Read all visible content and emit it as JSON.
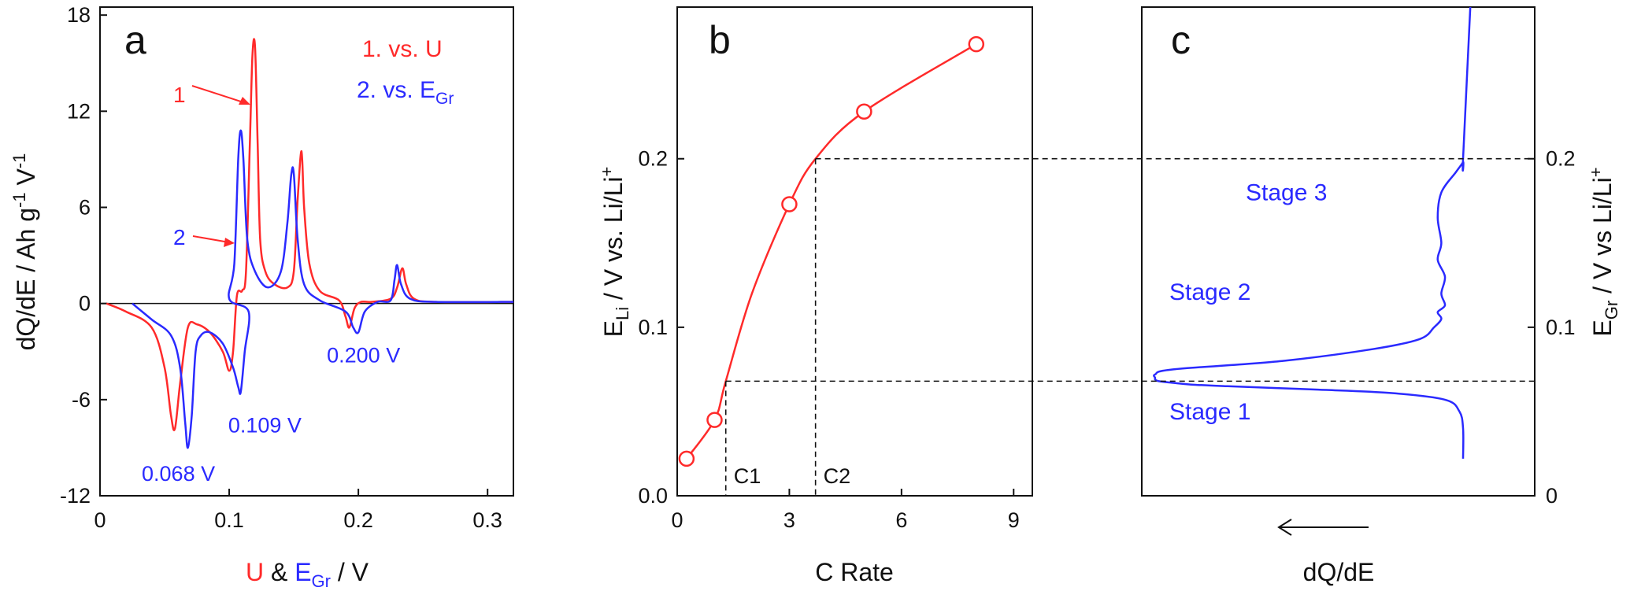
{
  "chart_data": [
    {
      "panel": "a",
      "type": "line",
      "xlabel_parts": [
        "U",
        " & ",
        "E",
        "Gr",
        " / V"
      ],
      "ylabel_parts": [
        "dQ/dE / Ah g",
        "-1",
        " V",
        "-1"
      ],
      "xlim": [
        0,
        0.32
      ],
      "ylim": [
        -12,
        18.5
      ],
      "xticks": [
        0,
        0.1,
        0.2,
        0.3
      ],
      "xtick_labels": [
        "0",
        "0.1",
        "0.2",
        "0.3"
      ],
      "yticks": [
        -12,
        -6,
        0,
        6,
        12,
        18
      ],
      "ytick_labels": [
        "-12",
        "-6",
        "0",
        "6",
        "12",
        "18"
      ],
      "legend": [
        {
          "label": "1. vs. U",
          "color": "#ff2a2a"
        },
        {
          "label_parts": [
            "2. vs. E",
            "Gr"
          ],
          "color": "#2a2aff"
        }
      ],
      "curve_markers": [
        {
          "label": "1",
          "color": "#ff2a2a"
        },
        {
          "label": "2",
          "color": "#2a2aff"
        }
      ],
      "series": [
        {
          "name": "1. vs. U",
          "color": "#ff2a2a",
          "x": [
            0.005,
            0.02,
            0.04,
            0.05,
            0.055,
            0.058,
            0.062,
            0.068,
            0.075,
            0.085,
            0.095,
            0.1,
            0.103,
            0.106,
            0.11,
            0.113,
            0.116,
            0.118,
            0.12,
            0.122,
            0.124,
            0.128,
            0.135,
            0.145,
            0.15,
            0.153,
            0.156,
            0.158,
            0.162,
            0.17,
            0.185,
            0.19,
            0.193,
            0.197,
            0.202,
            0.21,
            0.225,
            0.23,
            0.234,
            0.237,
            0.243,
            0.26,
            0.32
          ],
          "y": [
            0,
            -0.5,
            -1.5,
            -4,
            -7,
            -7.8,
            -5,
            -1.5,
            -1.3,
            -1.8,
            -3,
            -4.2,
            -3,
            0.5,
            0.8,
            2,
            10,
            15.5,
            16,
            10,
            4,
            2,
            1.2,
            1,
            2,
            6.5,
            9.5,
            6,
            2.5,
            0.8,
            0.2,
            -0.8,
            -1.5,
            -0.3,
            0.1,
            0.1,
            0.3,
            1,
            2.2,
            1.2,
            0.3,
            0.1,
            0.1
          ]
        },
        {
          "name": "2. vs. E_Gr",
          "color": "#2a2aff",
          "x": [
            0.025,
            0.04,
            0.055,
            0.062,
            0.066,
            0.068,
            0.071,
            0.074,
            0.078,
            0.085,
            0.095,
            0.103,
            0.107,
            0.109,
            0.112,
            0.115,
            0.1,
            0.104,
            0.107,
            0.109,
            0.111,
            0.114,
            0.12,
            0.13,
            0.14,
            0.145,
            0.148,
            0.15,
            0.153,
            0.158,
            0.17,
            0.19,
            0.196,
            0.2,
            0.205,
            0.215,
            0.225,
            0.228,
            0.23,
            0.233,
            0.24,
            0.26,
            0.32
          ],
          "y": [
            0,
            -1,
            -2,
            -4,
            -7.5,
            -9,
            -7,
            -3,
            -2,
            -1.8,
            -2.5,
            -4,
            -5.2,
            -5.5,
            -3,
            -0.5,
            0.3,
            2.5,
            9,
            10.8,
            9,
            4,
            2,
            1,
            2,
            5,
            8,
            8.1,
            4,
            1.2,
            0.2,
            -0.5,
            -1.5,
            -1.8,
            -0.5,
            0.1,
            0.2,
            1.5,
            2.4,
            1.2,
            0.3,
            0.1,
            0.1
          ]
        }
      ],
      "annotations": [
        {
          "text": "0.200 V",
          "x": 0.2,
          "y": -1.8,
          "color": "#2a2aff"
        },
        {
          "text": "0.109 V",
          "x": 0.109,
          "y": -5.5,
          "color": "#2a2aff"
        },
        {
          "text": "0.068 V",
          "x": 0.068,
          "y": -9,
          "color": "#2a2aff"
        }
      ]
    },
    {
      "panel": "b",
      "type": "line",
      "xlabel": "C Rate",
      "ylabel_parts": [
        "E",
        "Li",
        " / V vs. Li/Li",
        "+"
      ],
      "xlim": [
        0,
        9.5
      ],
      "ylim": [
        0,
        0.29
      ],
      "xticks": [
        0,
        3,
        6,
        9
      ],
      "xtick_labels": [
        "0",
        "3",
        "6",
        "9"
      ],
      "yticks": [
        0,
        0.1,
        0.2
      ],
      "ytick_labels": [
        "0.0",
        "0.1",
        "0.2"
      ],
      "series": [
        {
          "color": "#ff2a2a",
          "markers": {
            "x": [
              0.25,
              1,
              3,
              5,
              8
            ],
            "y": [
              0.022,
              0.045,
              0.173,
              0.228,
              0.268
            ]
          },
          "curve": {
            "x": [
              0.25,
              1,
              1.3,
              2,
              3,
              3.7,
              5,
              8
            ],
            "y": [
              0.022,
              0.045,
              0.068,
              0.12,
              0.173,
              0.2,
              0.228,
              0.268
            ]
          }
        }
      ],
      "reference_lines": [
        {
          "label": "C1",
          "x": 1.3,
          "y": 0.068
        },
        {
          "label": "C2",
          "x": 3.7,
          "y": 0.2
        }
      ]
    },
    {
      "panel": "c",
      "type": "line",
      "xlabel": "dQ/dE",
      "ylabel_parts": [
        "E",
        "Gr",
        " / V vs Li/Li",
        "+"
      ],
      "ylim": [
        0,
        0.29
      ],
      "yticks": [
        0,
        0.1,
        0.2
      ],
      "ytick_labels": [
        "0",
        "0.1",
        "0.2"
      ],
      "series": [
        {
          "color": "#2a2aff",
          "d_over_x": [
            0,
            0,
            -0.1,
            -0.5,
            -2,
            -4,
            -6.5,
            -7.5,
            -8,
            -8.4,
            -8.5,
            -8.5,
            -8.5,
            -8,
            -5,
            -2.5,
            -1.2,
            -0.8,
            -0.6,
            -0.7,
            -0.5,
            -0.6,
            -0.5,
            -0.7,
            -0.6,
            -0.7,
            -0.6,
            -0.2,
            0,
            0,
            0.2
          ],
          "y": [
            0.022,
            0.04,
            0.05,
            0.057,
            0.061,
            0.063,
            0.065,
            0.066,
            0.067,
            0.068,
            0.069,
            0.07,
            0.072,
            0.075,
            0.08,
            0.087,
            0.093,
            0.1,
            0.105,
            0.109,
            0.113,
            0.12,
            0.13,
            0.14,
            0.15,
            0.165,
            0.18,
            0.192,
            0.198,
            0.2,
            0.29
          ]
        }
      ],
      "annotations": [
        {
          "text": "Stage 3",
          "y": 0.18
        },
        {
          "text": "Stage 2",
          "y": 0.121
        },
        {
          "text": "Stage 1",
          "y": 0.05
        }
      ]
    }
  ]
}
